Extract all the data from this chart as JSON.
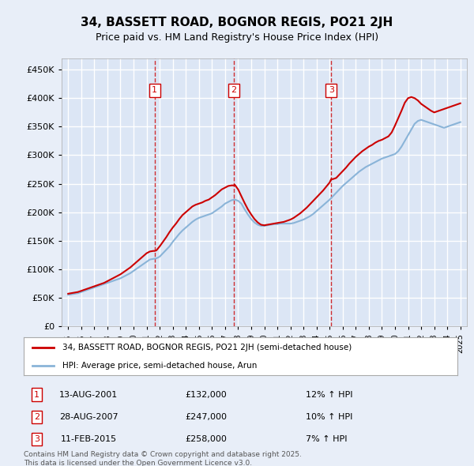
{
  "title": "34, BASSETT ROAD, BOGNOR REGIS, PO21 2JH",
  "subtitle": "Price paid vs. HM Land Registry's House Price Index (HPI)",
  "background_color": "#e8eef8",
  "plot_bg_color": "#dce6f5",
  "grid_color": "#ffffff",
  "ylim": [
    0,
    470000
  ],
  "yticks": [
    0,
    50000,
    100000,
    150000,
    200000,
    250000,
    300000,
    350000,
    400000,
    450000
  ],
  "xlim_start": 1994.5,
  "xlim_end": 2025.5,
  "red_line_color": "#cc0000",
  "blue_line_color": "#8ab4d8",
  "vline_color": "#cc0000",
  "marker_box_color": "#cc0000",
  "footnote": "Contains HM Land Registry data © Crown copyright and database right 2025.\nThis data is licensed under the Open Government Licence v3.0.",
  "legend_label_red": "34, BASSETT ROAD, BOGNOR REGIS, PO21 2JH (semi-detached house)",
  "legend_label_blue": "HPI: Average price, semi-detached house, Arun",
  "transactions": [
    {
      "num": 1,
      "date": "13-AUG-2001",
      "price": 132000,
      "pct": "12%",
      "year": 2001.62
    },
    {
      "num": 2,
      "date": "28-AUG-2007",
      "price": 247000,
      "pct": "10%",
      "year": 2007.65
    },
    {
      "num": 3,
      "date": "11-FEB-2015",
      "price": 258000,
      "pct": "7%",
      "year": 2015.12
    }
  ],
  "hpi_years": [
    1995,
    1995.25,
    1995.5,
    1995.75,
    1996,
    1996.25,
    1996.5,
    1996.75,
    1997,
    1997.25,
    1997.5,
    1997.75,
    1998,
    1998.25,
    1998.5,
    1998.75,
    1999,
    1999.25,
    1999.5,
    1999.75,
    2000,
    2000.25,
    2000.5,
    2000.75,
    2001,
    2001.25,
    2001.5,
    2001.75,
    2002,
    2002.25,
    2002.5,
    2002.75,
    2003,
    2003.25,
    2003.5,
    2003.75,
    2004,
    2004.25,
    2004.5,
    2004.75,
    2005,
    2005.25,
    2005.5,
    2005.75,
    2006,
    2006.25,
    2006.5,
    2006.75,
    2007,
    2007.25,
    2007.5,
    2007.75,
    2008,
    2008.25,
    2008.5,
    2008.75,
    2009,
    2009.25,
    2009.5,
    2009.75,
    2010,
    2010.25,
    2010.5,
    2010.75,
    2011,
    2011.25,
    2011.5,
    2011.75,
    2012,
    2012.25,
    2012.5,
    2012.75,
    2013,
    2013.25,
    2013.5,
    2013.75,
    2014,
    2014.25,
    2014.5,
    2014.75,
    2015,
    2015.25,
    2015.5,
    2015.75,
    2016,
    2016.25,
    2016.5,
    2016.75,
    2017,
    2017.25,
    2017.5,
    2017.75,
    2018,
    2018.25,
    2018.5,
    2018.75,
    2019,
    2019.25,
    2019.5,
    2019.75,
    2020,
    2020.25,
    2020.5,
    2020.75,
    2021,
    2021.25,
    2021.5,
    2021.75,
    2022,
    2022.25,
    2022.5,
    2022.75,
    2023,
    2023.25,
    2023.5,
    2023.75,
    2024,
    2024.25,
    2024.5,
    2024.75,
    2025
  ],
  "hpi_values": [
    55000,
    56000,
    57000,
    58000,
    60000,
    62000,
    64000,
    66000,
    68000,
    70000,
    72000,
    74000,
    76000,
    78000,
    80000,
    82000,
    84000,
    87000,
    90000,
    93000,
    97000,
    101000,
    105000,
    109000,
    113000,
    117000,
    118000,
    119000,
    122000,
    128000,
    134000,
    140000,
    148000,
    155000,
    162000,
    168000,
    173000,
    178000,
    183000,
    187000,
    190000,
    192000,
    194000,
    196000,
    198000,
    202000,
    206000,
    210000,
    215000,
    218000,
    221000,
    222000,
    220000,
    215000,
    205000,
    196000,
    188000,
    182000,
    178000,
    176000,
    176000,
    177000,
    178000,
    179000,
    179000,
    180000,
    180000,
    180000,
    180000,
    181000,
    183000,
    185000,
    187000,
    190000,
    193000,
    197000,
    202000,
    207000,
    212000,
    217000,
    222000,
    228000,
    234000,
    240000,
    246000,
    251000,
    256000,
    261000,
    266000,
    271000,
    275000,
    279000,
    282000,
    285000,
    288000,
    291000,
    294000,
    296000,
    298000,
    300000,
    302000,
    307000,
    315000,
    325000,
    335000,
    345000,
    355000,
    360000,
    362000,
    360000,
    358000,
    356000,
    354000,
    352000,
    350000,
    348000,
    350000,
    352000,
    354000,
    356000,
    358000
  ],
  "red_years": [
    1995,
    1995.25,
    1995.5,
    1995.75,
    1996,
    1996.25,
    1996.5,
    1996.75,
    1997,
    1997.25,
    1997.5,
    1997.75,
    1998,
    1998.25,
    1998.5,
    1998.75,
    1999,
    1999.25,
    1999.5,
    1999.75,
    2000,
    2000.25,
    2000.5,
    2000.75,
    2001,
    2001.25,
    2001.5,
    2001.62,
    2001.75,
    2002,
    2002.25,
    2002.5,
    2002.75,
    2003,
    2003.25,
    2003.5,
    2003.75,
    2004,
    2004.25,
    2004.5,
    2004.75,
    2005,
    2005.25,
    2005.5,
    2005.75,
    2006,
    2006.25,
    2006.5,
    2006.75,
    2007,
    2007.25,
    2007.5,
    2007.65,
    2007.75,
    2008,
    2008.25,
    2008.5,
    2008.75,
    2009,
    2009.25,
    2009.5,
    2009.75,
    2010,
    2010.25,
    2010.5,
    2010.75,
    2011,
    2011.25,
    2011.5,
    2011.75,
    2012,
    2012.25,
    2012.5,
    2012.75,
    2013,
    2013.25,
    2013.5,
    2013.75,
    2014,
    2014.25,
    2014.5,
    2014.75,
    2015,
    2015.12,
    2015.25,
    2015.5,
    2015.75,
    2016,
    2016.25,
    2016.5,
    2016.75,
    2017,
    2017.25,
    2017.5,
    2017.75,
    2018,
    2018.25,
    2018.5,
    2018.75,
    2019,
    2019.25,
    2019.5,
    2019.75,
    2020,
    2020.25,
    2020.5,
    2020.75,
    2021,
    2021.25,
    2021.5,
    2021.75,
    2022,
    2022.25,
    2022.5,
    2022.75,
    2023,
    2023.25,
    2023.5,
    2023.75,
    2024,
    2024.25,
    2024.5,
    2024.75,
    2025
  ],
  "red_values": [
    57000,
    58000,
    59000,
    60000,
    62000,
    64000,
    66000,
    68000,
    70000,
    72000,
    74000,
    76000,
    79000,
    82000,
    85000,
    88000,
    91000,
    95000,
    99000,
    103000,
    108000,
    113000,
    118000,
    123000,
    128000,
    131000,
    132000,
    132000,
    133000,
    140000,
    148000,
    156000,
    165000,
    173000,
    180000,
    188000,
    195000,
    200000,
    205000,
    210000,
    213000,
    215000,
    217000,
    220000,
    222000,
    226000,
    230000,
    235000,
    240000,
    243000,
    246000,
    247000,
    247000,
    248000,
    240000,
    228000,
    216000,
    205000,
    196000,
    188000,
    182000,
    178000,
    177000,
    178000,
    179000,
    180000,
    181000,
    182000,
    183000,
    185000,
    187000,
    190000,
    194000,
    198000,
    203000,
    208000,
    214000,
    220000,
    226000,
    232000,
    238000,
    245000,
    252000,
    258000,
    258000,
    260000,
    266000,
    272000,
    278000,
    285000,
    291000,
    297000,
    302000,
    307000,
    311000,
    315000,
    318000,
    322000,
    325000,
    327000,
    330000,
    333000,
    340000,
    352000,
    365000,
    378000,
    392000,
    400000,
    402000,
    400000,
    396000,
    390000,
    386000,
    382000,
    378000,
    375000,
    377000,
    379000,
    381000,
    383000,
    385000,
    387000,
    389000,
    391000
  ]
}
